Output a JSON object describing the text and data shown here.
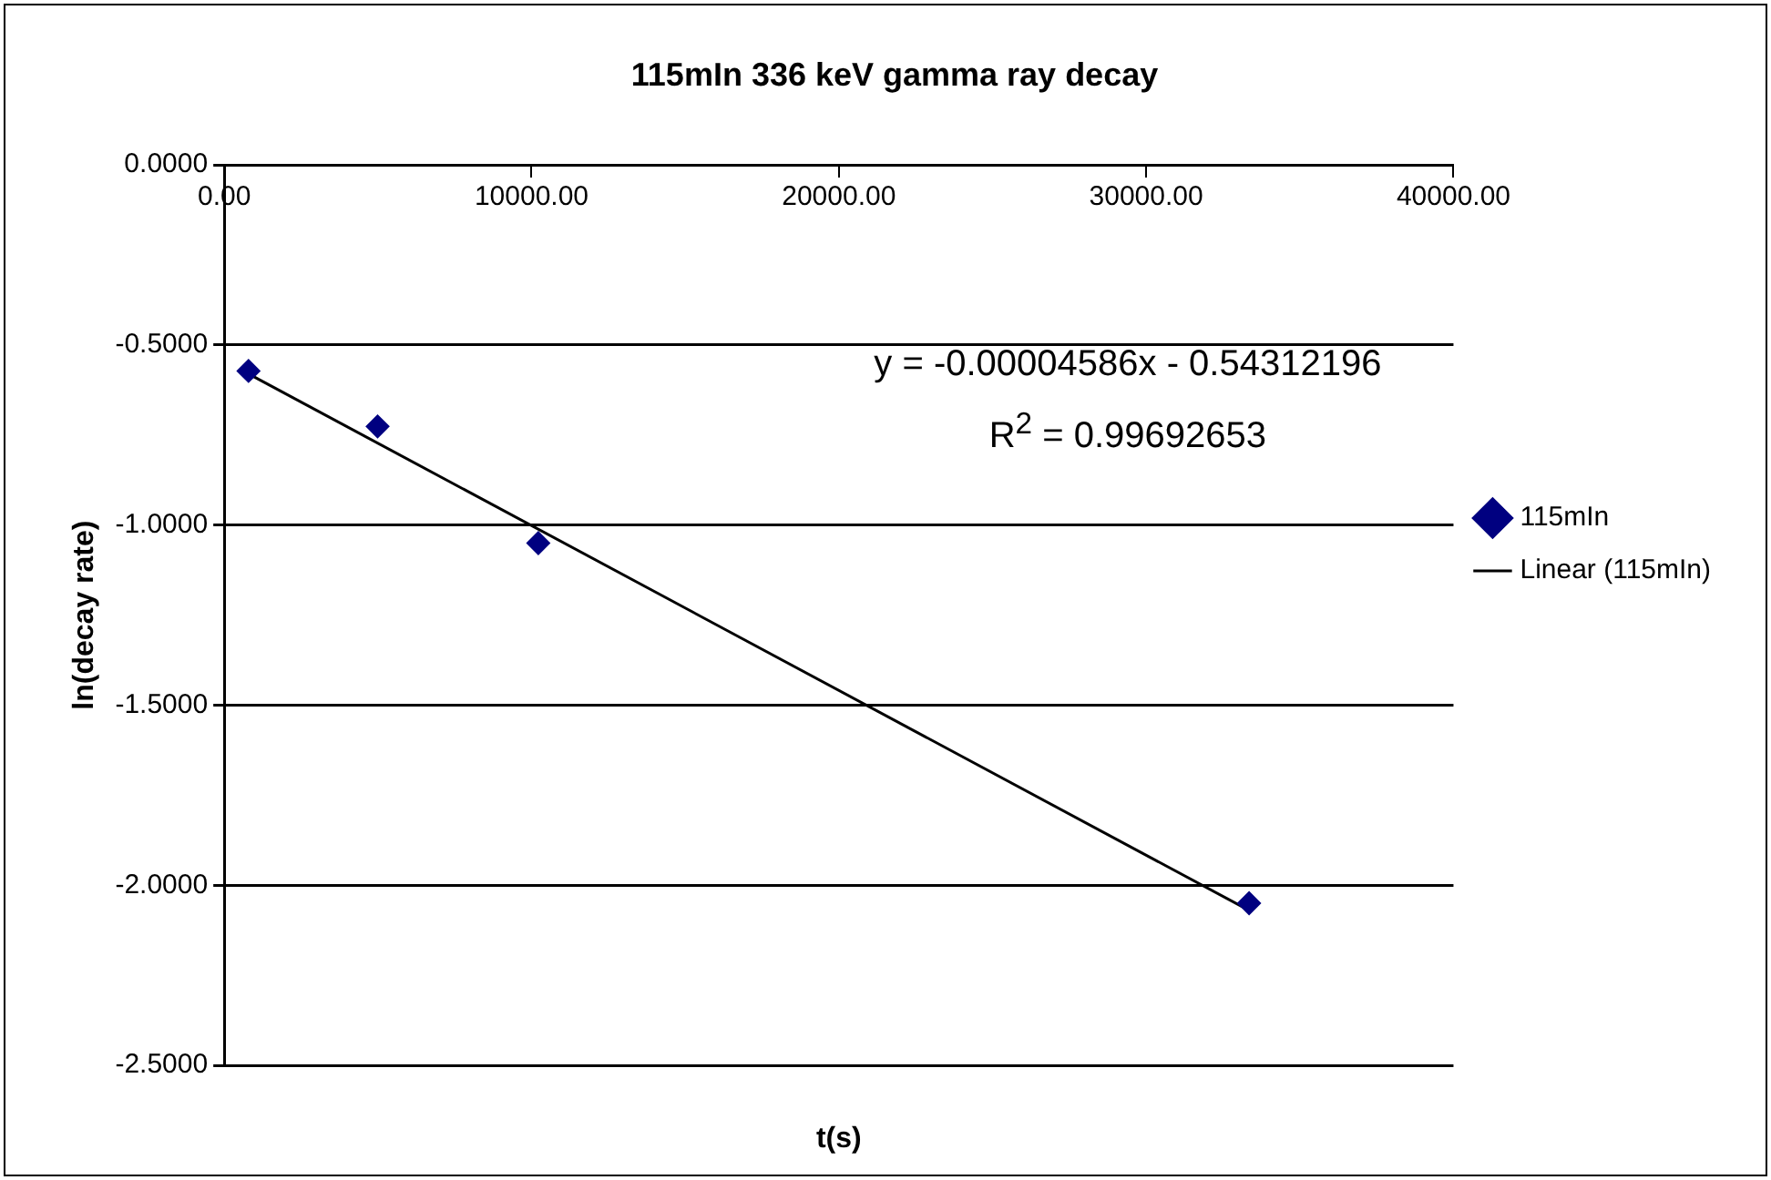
{
  "chart_data": {
    "type": "scatter",
    "title": "115mIn 336 keV gamma ray decay",
    "xlabel": "t(s)",
    "ylabel": "ln(decay rate)",
    "series": [
      {
        "name": "115mIn",
        "color": "#000080",
        "marker": "diamond",
        "x": [
          790,
          4990,
          10220,
          33350
        ],
        "values": [
          -0.572,
          -0.726,
          -1.05,
          -2.05
        ]
      },
      {
        "name": "Linear (115mIn)",
        "type": "line",
        "color": "#000000",
        "marker": "none",
        "line_style": "solid",
        "x": [
          790,
          33350
        ],
        "values": [
          -0.58,
          -2.07
        ]
      }
    ],
    "annotations": [
      "y = -0.00004586x - 0.54312196",
      "R$^{2}$ = 0.99692653"
    ],
    "xlim": [
      0,
      40000
    ],
    "xticks": [
      {
        "value": 0,
        "label": "0.00"
      },
      {
        "value": 10000,
        "label": "10000.00"
      },
      {
        "value": 20000,
        "label": "20000.00"
      },
      {
        "value": 30000,
        "label": "30000.00"
      },
      {
        "value": 40000,
        "label": "40000.00"
      }
    ],
    "ylim": [
      -2.5,
      0
    ],
    "yticks": [
      {
        "value": -2.5,
        "label": "-2.5000"
      },
      {
        "value": -2,
        "label": "-2.0000"
      },
      {
        "value": -1.5,
        "label": "-1.5000"
      },
      {
        "value": -1,
        "label": "-1.0000"
      },
      {
        "value": -0.5,
        "label": "-0.5000"
      },
      {
        "value": 0,
        "label": "0.0000"
      }
    ],
    "grid": "y",
    "legend": "right"
  }
}
